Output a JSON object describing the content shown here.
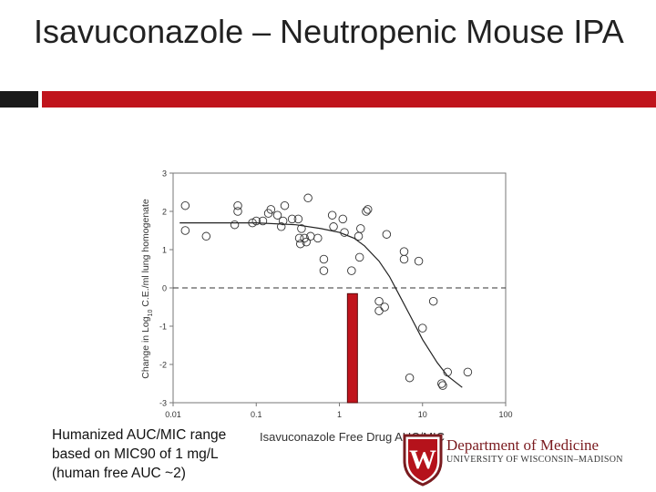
{
  "slide": {
    "title": "Isavuconazole – Neutropenic Mouse IPA",
    "caption_lines": [
      "Humanized AUC/MIC range",
      "based on MIC90 of 1 mg/L",
      "(human free AUC ~2)"
    ],
    "colors": {
      "accent": "#c0141c",
      "dark": "#1a1a1a",
      "text": "#222222"
    }
  },
  "logo": {
    "department": "Department of Medicine",
    "university": "UNIVERSITY OF WISCONSIN–MADISON",
    "crest_letter": "W",
    "color": "#7a1b1f"
  },
  "chart_data": {
    "type": "scatter",
    "title": "",
    "xlabel": "Isavuconazole Free Drug AUC/MIC",
    "ylabel": "Change in Log10 C.E./ml lung homogenate",
    "ylabel_parts": {
      "pre": "Change in Log",
      "sub": "10",
      "post": " C.E./ml lung homogenate"
    },
    "x_scale": "log",
    "xlim": [
      0.01,
      100
    ],
    "ylim": [
      -3,
      3
    ],
    "x_ticks": [
      {
        "value": 0.01,
        "label": "0.01"
      },
      {
        "value": 0.1,
        "label": "0.1"
      },
      {
        "value": 1,
        "label": "1"
      },
      {
        "value": 10,
        "label": "10"
      },
      {
        "value": 100,
        "label": "100"
      }
    ],
    "y_ticks": [
      {
        "value": 3,
        "label": "3"
      },
      {
        "value": 2,
        "label": "2"
      },
      {
        "value": 1,
        "label": "1"
      },
      {
        "value": 0,
        "label": "0"
      },
      {
        "value": -1,
        "label": "-1"
      },
      {
        "value": -2,
        "label": "-2"
      },
      {
        "value": -3,
        "label": "-3"
      }
    ],
    "reference_line_y": 0,
    "points": [
      [
        0.014,
        2.15
      ],
      [
        0.014,
        1.5
      ],
      [
        0.025,
        1.35
      ],
      [
        0.055,
        1.65
      ],
      [
        0.06,
        2.0
      ],
      [
        0.06,
        2.15
      ],
      [
        0.09,
        1.7
      ],
      [
        0.1,
        1.75
      ],
      [
        0.12,
        1.75
      ],
      [
        0.14,
        1.95
      ],
      [
        0.15,
        2.05
      ],
      [
        0.18,
        1.9
      ],
      [
        0.2,
        1.6
      ],
      [
        0.21,
        1.75
      ],
      [
        0.22,
        2.15
      ],
      [
        0.27,
        1.8
      ],
      [
        0.32,
        1.8
      ],
      [
        0.33,
        1.3
      ],
      [
        0.34,
        1.15
      ],
      [
        0.35,
        1.55
      ],
      [
        0.38,
        1.3
      ],
      [
        0.4,
        1.2
      ],
      [
        0.42,
        2.35
      ],
      [
        0.45,
        1.35
      ],
      [
        0.55,
        1.3
      ],
      [
        0.65,
        0.75
      ],
      [
        0.65,
        0.45
      ],
      [
        0.82,
        1.9
      ],
      [
        0.85,
        1.6
      ],
      [
        1.1,
        1.8
      ],
      [
        1.15,
        1.45
      ],
      [
        1.4,
        0.45
      ],
      [
        1.7,
        1.35
      ],
      [
        1.75,
        0.8
      ],
      [
        1.8,
        1.55
      ],
      [
        2.1,
        2.0
      ],
      [
        2.2,
        2.05
      ],
      [
        3.0,
        -0.35
      ],
      [
        3.0,
        -0.6
      ],
      [
        3.5,
        -0.5
      ],
      [
        3.7,
        1.4
      ],
      [
        6.0,
        0.95
      ],
      [
        6.0,
        0.75
      ],
      [
        7.0,
        -2.35
      ],
      [
        9.0,
        0.7
      ],
      [
        10.0,
        -1.05
      ],
      [
        13.5,
        -0.35
      ],
      [
        17.0,
        -2.5
      ],
      [
        17.5,
        -2.55
      ],
      [
        20.0,
        -2.2
      ],
      [
        35.0,
        -2.2
      ]
    ],
    "fit_curve": [
      [
        0.012,
        1.7
      ],
      [
        0.1,
        1.7
      ],
      [
        0.3,
        1.65
      ],
      [
        0.6,
        1.55
      ],
      [
        1.0,
        1.45
      ],
      [
        1.5,
        1.3
      ],
      [
        2.0,
        1.1
      ],
      [
        3.0,
        0.7
      ],
      [
        4.0,
        0.3
      ],
      [
        5.0,
        -0.1
      ],
      [
        7.0,
        -0.7
      ],
      [
        10.0,
        -1.35
      ],
      [
        15.0,
        -1.95
      ],
      [
        20.0,
        -2.3
      ],
      [
        30.0,
        -2.6
      ]
    ],
    "highlight_bar": {
      "x_range": [
        1.25,
        1.65
      ],
      "y_range": [
        -3,
        -0.15
      ],
      "color": "#c0141c"
    },
    "grid": false,
    "legend": "none"
  }
}
